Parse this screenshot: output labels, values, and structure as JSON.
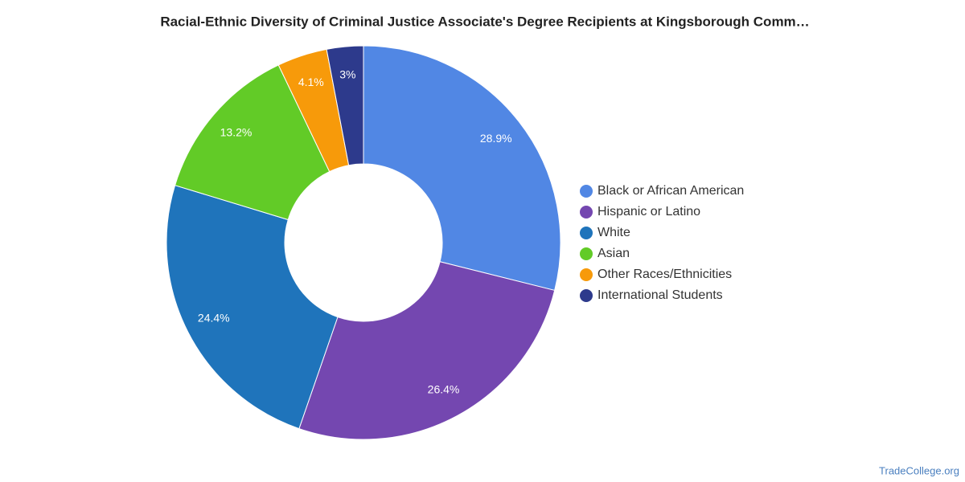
{
  "chart_data": {
    "type": "donut",
    "title": "Racial-Ethnic Diversity of Criminal Justice Associate's Degree Recipients at Kingsborough Comm…",
    "categories": [
      "Black or African American",
      "Hispanic or Latino",
      "White",
      "Asian",
      "Other Races/Ethnicities",
      "International Students"
    ],
    "values": [
      28.9,
      26.4,
      24.4,
      13.2,
      4.1,
      3
    ],
    "value_labels": [
      "28.9%",
      "26.4%",
      "24.4%",
      "13.2%",
      "4.1%",
      "3%"
    ],
    "colors": [
      "#5187e4",
      "#7447b0",
      "#1f74bb",
      "#62cb27",
      "#f79a0a",
      "#2d3a8c"
    ],
    "legend": "right",
    "credit": "TradeCollege.org"
  }
}
